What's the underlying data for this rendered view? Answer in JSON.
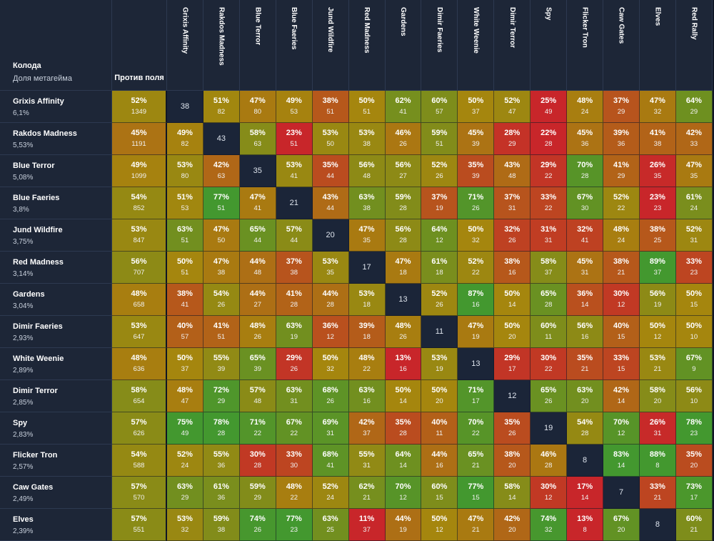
{
  "header": {
    "deck_label": "Колода",
    "share_label": "Доля метагейма",
    "vs_field_label": "Против поля"
  },
  "decks": [
    {
      "name": "Grixis Affinity",
      "share": "6,1%",
      "vs_pct": "52%",
      "vs_games": "1349"
    },
    {
      "name": "Rakdos Madness",
      "share": "5,53%",
      "vs_pct": "45%",
      "vs_games": "1191"
    },
    {
      "name": "Blue Terror",
      "share": "5,08%",
      "vs_pct": "49%",
      "vs_games": "1099"
    },
    {
      "name": "Blue Faeries",
      "share": "3,8%",
      "vs_pct": "54%",
      "vs_games": "852"
    },
    {
      "name": "Jund Wildfire",
      "share": "3,75%",
      "vs_pct": "53%",
      "vs_games": "847"
    },
    {
      "name": "Red Madness",
      "share": "3,14%",
      "vs_pct": "56%",
      "vs_games": "707"
    },
    {
      "name": "Gardens",
      "share": "3,04%",
      "vs_pct": "48%",
      "vs_games": "658"
    },
    {
      "name": "Dimir Faeries",
      "share": "2,93%",
      "vs_pct": "53%",
      "vs_games": "647"
    },
    {
      "name": "White Weenie",
      "share": "2,89%",
      "vs_pct": "48%",
      "vs_games": "636"
    },
    {
      "name": "Dimir Terror",
      "share": "2,85%",
      "vs_pct": "58%",
      "vs_games": "654"
    },
    {
      "name": "Spy",
      "share": "2,83%",
      "vs_pct": "57%",
      "vs_games": "626"
    },
    {
      "name": "Flicker Tron",
      "share": "2,57%",
      "vs_pct": "54%",
      "vs_games": "588"
    },
    {
      "name": "Caw Gates",
      "share": "2,49%",
      "vs_pct": "57%",
      "vs_games": "570"
    },
    {
      "name": "Elves",
      "share": "2,39%",
      "vs_pct": "57%",
      "vs_games": "551"
    }
  ],
  "columns": [
    "Grixis Affinity",
    "Rakdos Madness",
    "Blue Terror",
    "Blue Faeries",
    "Jund Wildfire",
    "Red Madness",
    "Gardens",
    "Dimir Faeries",
    "White Weenie",
    "Dimir Terror",
    "Spy",
    "Flicker Tron",
    "Caw Gates",
    "Elves",
    "Red Rally"
  ],
  "matrix": [
    [
      [
        null,
        "38"
      ],
      [
        "51%",
        "82"
      ],
      [
        "47%",
        "80"
      ],
      [
        "49%",
        "53"
      ],
      [
        "38%",
        "51"
      ],
      [
        "50%",
        "51"
      ],
      [
        "62%",
        "41"
      ],
      [
        "60%",
        "57"
      ],
      [
        "50%",
        "37"
      ],
      [
        "52%",
        "47"
      ],
      [
        "25%",
        "49"
      ],
      [
        "48%",
        "24"
      ],
      [
        "37%",
        "29"
      ],
      [
        "47%",
        "32"
      ],
      [
        "64%",
        "29"
      ]
    ],
    [
      [
        "49%",
        "82"
      ],
      [
        null,
        "43"
      ],
      [
        "58%",
        "63"
      ],
      [
        "23%",
        "51"
      ],
      [
        "53%",
        "50"
      ],
      [
        "53%",
        "38"
      ],
      [
        "46%",
        "26"
      ],
      [
        "59%",
        "51"
      ],
      [
        "45%",
        "39"
      ],
      [
        "28%",
        "29"
      ],
      [
        "22%",
        "28"
      ],
      [
        "45%",
        "36"
      ],
      [
        "39%",
        "36"
      ],
      [
        "41%",
        "38"
      ],
      [
        "42%",
        "33"
      ]
    ],
    [
      [
        "53%",
        "80"
      ],
      [
        "42%",
        "63"
      ],
      [
        null,
        "35"
      ],
      [
        "53%",
        "41"
      ],
      [
        "35%",
        "44"
      ],
      [
        "56%",
        "48"
      ],
      [
        "56%",
        "27"
      ],
      [
        "52%",
        "26"
      ],
      [
        "35%",
        "39"
      ],
      [
        "43%",
        "48"
      ],
      [
        "29%",
        "22"
      ],
      [
        "70%",
        "28"
      ],
      [
        "41%",
        "29"
      ],
      [
        "26%",
        "35"
      ],
      [
        "47%",
        "35"
      ]
    ],
    [
      [
        "51%",
        "53"
      ],
      [
        "77%",
        "51"
      ],
      [
        "47%",
        "41"
      ],
      [
        null,
        "21"
      ],
      [
        "43%",
        "44"
      ],
      [
        "63%",
        "38"
      ],
      [
        "59%",
        "28"
      ],
      [
        "37%",
        "19"
      ],
      [
        "71%",
        "26"
      ],
      [
        "37%",
        "31"
      ],
      [
        "33%",
        "22"
      ],
      [
        "67%",
        "30"
      ],
      [
        "52%",
        "22"
      ],
      [
        "23%",
        "23"
      ],
      [
        "61%",
        "24"
      ]
    ],
    [
      [
        "63%",
        "51"
      ],
      [
        "47%",
        "50"
      ],
      [
        "65%",
        "44"
      ],
      [
        "57%",
        "44"
      ],
      [
        null,
        "20"
      ],
      [
        "47%",
        "35"
      ],
      [
        "56%",
        "28"
      ],
      [
        "64%",
        "12"
      ],
      [
        "50%",
        "32"
      ],
      [
        "32%",
        "26"
      ],
      [
        "31%",
        "31"
      ],
      [
        "32%",
        "41"
      ],
      [
        "48%",
        "24"
      ],
      [
        "38%",
        "25"
      ],
      [
        "52%",
        "31"
      ]
    ],
    [
      [
        "50%",
        "51"
      ],
      [
        "47%",
        "38"
      ],
      [
        "44%",
        "48"
      ],
      [
        "37%",
        "38"
      ],
      [
        "53%",
        "35"
      ],
      [
        null,
        "17"
      ],
      [
        "47%",
        "18"
      ],
      [
        "61%",
        "18"
      ],
      [
        "52%",
        "22"
      ],
      [
        "38%",
        "16"
      ],
      [
        "58%",
        "37"
      ],
      [
        "45%",
        "31"
      ],
      [
        "38%",
        "21"
      ],
      [
        "89%",
        "37"
      ],
      [
        "33%",
        "23"
      ]
    ],
    [
      [
        "38%",
        "41"
      ],
      [
        "54%",
        "26"
      ],
      [
        "44%",
        "27"
      ],
      [
        "41%",
        "28"
      ],
      [
        "44%",
        "28"
      ],
      [
        "53%",
        "18"
      ],
      [
        null,
        "13"
      ],
      [
        "52%",
        "26"
      ],
      [
        "87%",
        "16"
      ],
      [
        "50%",
        "14"
      ],
      [
        "65%",
        "28"
      ],
      [
        "36%",
        "14"
      ],
      [
        "30%",
        "12"
      ],
      [
        "56%",
        "19"
      ],
      [
        "50%",
        "15"
      ]
    ],
    [
      [
        "40%",
        "57"
      ],
      [
        "41%",
        "51"
      ],
      [
        "48%",
        "26"
      ],
      [
        "63%",
        "19"
      ],
      [
        "36%",
        "12"
      ],
      [
        "39%",
        "18"
      ],
      [
        "48%",
        "26"
      ],
      [
        null,
        "11"
      ],
      [
        "47%",
        "19"
      ],
      [
        "50%",
        "20"
      ],
      [
        "60%",
        "11"
      ],
      [
        "56%",
        "16"
      ],
      [
        "40%",
        "15"
      ],
      [
        "50%",
        "12"
      ],
      [
        "50%",
        "10"
      ]
    ],
    [
      [
        "50%",
        "37"
      ],
      [
        "55%",
        "39"
      ],
      [
        "65%",
        "39"
      ],
      [
        "29%",
        "26"
      ],
      [
        "50%",
        "32"
      ],
      [
        "48%",
        "22"
      ],
      [
        "13%",
        "16"
      ],
      [
        "53%",
        "19"
      ],
      [
        null,
        "13"
      ],
      [
        "29%",
        "17"
      ],
      [
        "30%",
        "22"
      ],
      [
        "35%",
        "21"
      ],
      [
        "33%",
        "15"
      ],
      [
        "53%",
        "21"
      ],
      [
        "67%",
        "9"
      ]
    ],
    [
      [
        "48%",
        "47"
      ],
      [
        "72%",
        "29"
      ],
      [
        "57%",
        "48"
      ],
      [
        "63%",
        "31"
      ],
      [
        "68%",
        "26"
      ],
      [
        "63%",
        "16"
      ],
      [
        "50%",
        "14"
      ],
      [
        "50%",
        "20"
      ],
      [
        "71%",
        "17"
      ],
      [
        null,
        "12"
      ],
      [
        "65%",
        "26"
      ],
      [
        "63%",
        "20"
      ],
      [
        "42%",
        "14"
      ],
      [
        "58%",
        "20"
      ],
      [
        "56%",
        "10"
      ]
    ],
    [
      [
        "75%",
        "49"
      ],
      [
        "78%",
        "28"
      ],
      [
        "71%",
        "22"
      ],
      [
        "67%",
        "22"
      ],
      [
        "69%",
        "31"
      ],
      [
        "42%",
        "37"
      ],
      [
        "35%",
        "28"
      ],
      [
        "40%",
        "11"
      ],
      [
        "70%",
        "22"
      ],
      [
        "35%",
        "26"
      ],
      [
        null,
        "19"
      ],
      [
        "54%",
        "28"
      ],
      [
        "70%",
        "12"
      ],
      [
        "26%",
        "31"
      ],
      [
        "78%",
        "23"
      ]
    ],
    [
      [
        "52%",
        "24"
      ],
      [
        "55%",
        "36"
      ],
      [
        "30%",
        "28"
      ],
      [
        "33%",
        "30"
      ],
      [
        "68%",
        "41"
      ],
      [
        "55%",
        "31"
      ],
      [
        "64%",
        "14"
      ],
      [
        "44%",
        "16"
      ],
      [
        "65%",
        "21"
      ],
      [
        "38%",
        "20"
      ],
      [
        "46%",
        "28"
      ],
      [
        null,
        "8"
      ],
      [
        "83%",
        "14"
      ],
      [
        "88%",
        "8"
      ],
      [
        "35%",
        "20"
      ]
    ],
    [
      [
        "63%",
        "29"
      ],
      [
        "61%",
        "36"
      ],
      [
        "59%",
        "29"
      ],
      [
        "48%",
        "22"
      ],
      [
        "52%",
        "24"
      ],
      [
        "62%",
        "21"
      ],
      [
        "70%",
        "12"
      ],
      [
        "60%",
        "15"
      ],
      [
        "77%",
        "15"
      ],
      [
        "58%",
        "14"
      ],
      [
        "30%",
        "12"
      ],
      [
        "17%",
        "14"
      ],
      [
        null,
        "7"
      ],
      [
        "33%",
        "21"
      ],
      [
        "73%",
        "17"
      ]
    ],
    [
      [
        "53%",
        "32"
      ],
      [
        "59%",
        "38"
      ],
      [
        "74%",
        "26"
      ],
      [
        "77%",
        "23"
      ],
      [
        "63%",
        "25"
      ],
      [
        "11%",
        "37"
      ],
      [
        "44%",
        "19"
      ],
      [
        "50%",
        "12"
      ],
      [
        "47%",
        "21"
      ],
      [
        "42%",
        "20"
      ],
      [
        "74%",
        "32"
      ],
      [
        "13%",
        "8"
      ],
      [
        "67%",
        "20"
      ],
      [
        null,
        "8"
      ],
      [
        "60%",
        "21"
      ]
    ]
  ],
  "colors": {
    "low": "#c8262a",
    "mid": "#a5860e",
    "high": "#43982f",
    "diagonal": "#1b2538",
    "header_bg": "#1d2637",
    "page_bg": "#0f1625"
  }
}
